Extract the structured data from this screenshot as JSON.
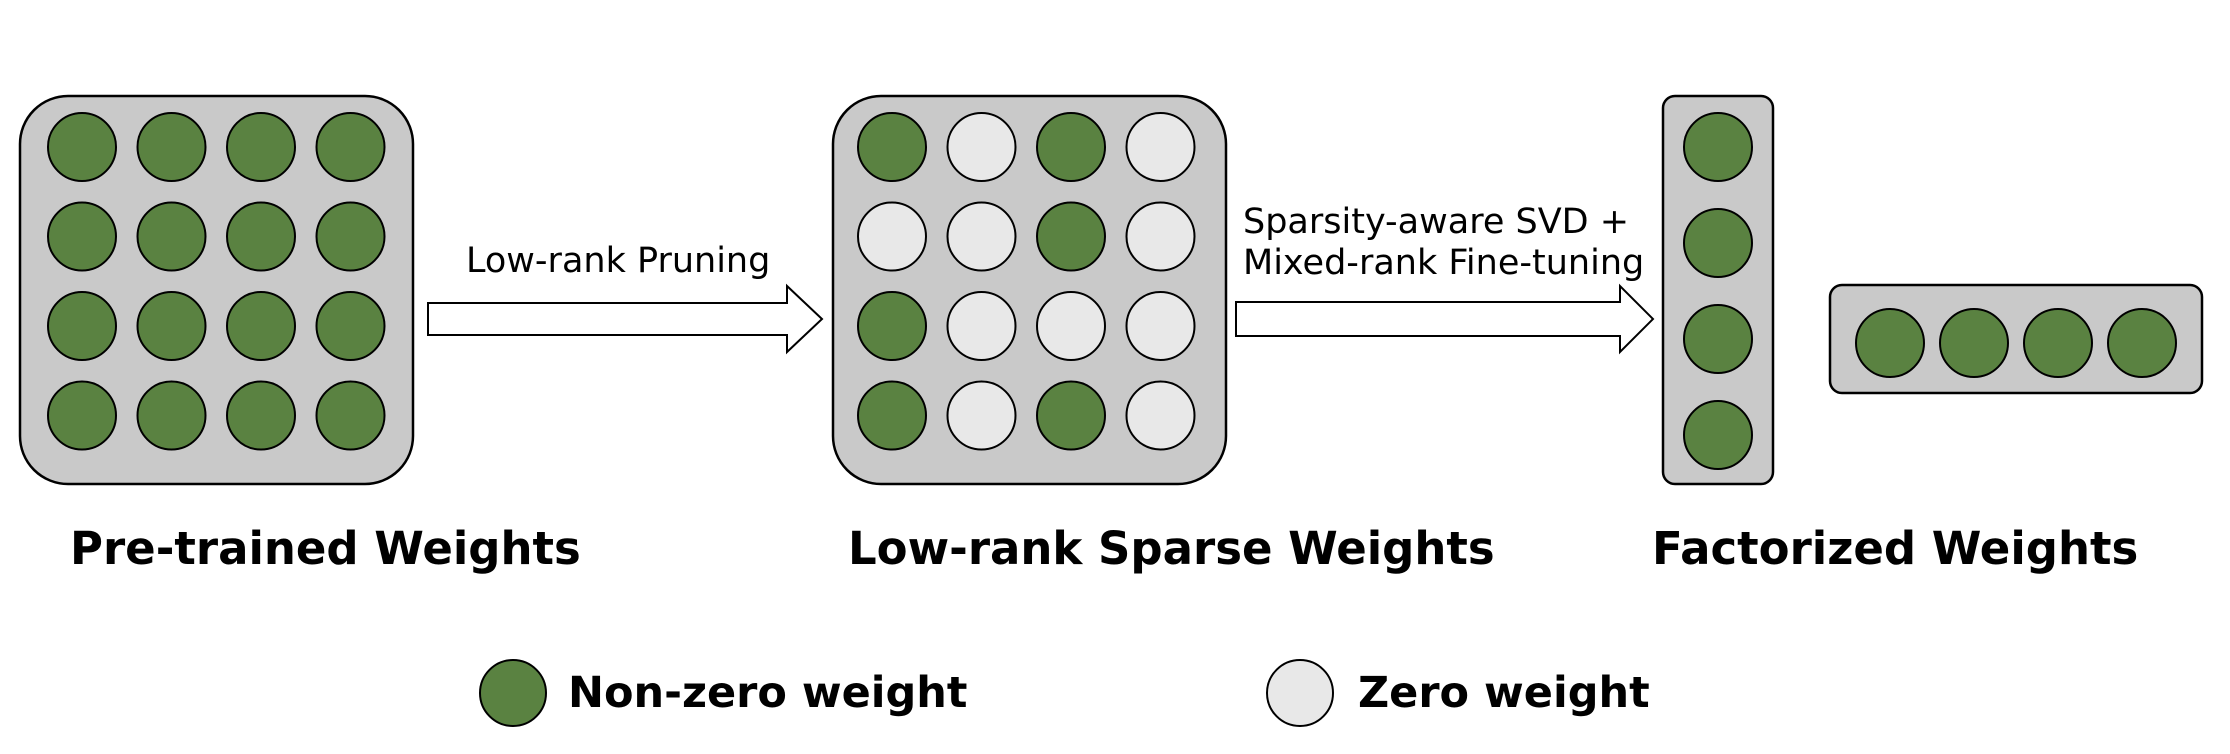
{
  "colors": {
    "nonzero": "#5a8241",
    "zero": "#e8e8e8",
    "panel": "#c9c9c9"
  },
  "captions": {
    "pretrained": "Pre-trained Weights",
    "sparse": "Low-rank Sparse Weights",
    "factorized": "Factorized Weights"
  },
  "arrows": {
    "pruning": "Low-rank Pruning",
    "svd_line1": "Sparsity-aware SVD +",
    "svd_line2": "Mixed-rank Fine-tuning"
  },
  "legend": {
    "nonzero_label": "Non-zero weight",
    "zero_label": "Zero weight"
  },
  "matrices": {
    "pretrained": [
      [
        1,
        1,
        1,
        1
      ],
      [
        1,
        1,
        1,
        1
      ],
      [
        1,
        1,
        1,
        1
      ],
      [
        1,
        1,
        1,
        1
      ]
    ],
    "sparse": [
      [
        1,
        0,
        1,
        0
      ],
      [
        0,
        0,
        1,
        0
      ],
      [
        1,
        0,
        0,
        0
      ],
      [
        1,
        0,
        1,
        0
      ]
    ],
    "factor_column": [
      1,
      1,
      1,
      1
    ],
    "factor_row": [
      1,
      1,
      1,
      1
    ]
  }
}
